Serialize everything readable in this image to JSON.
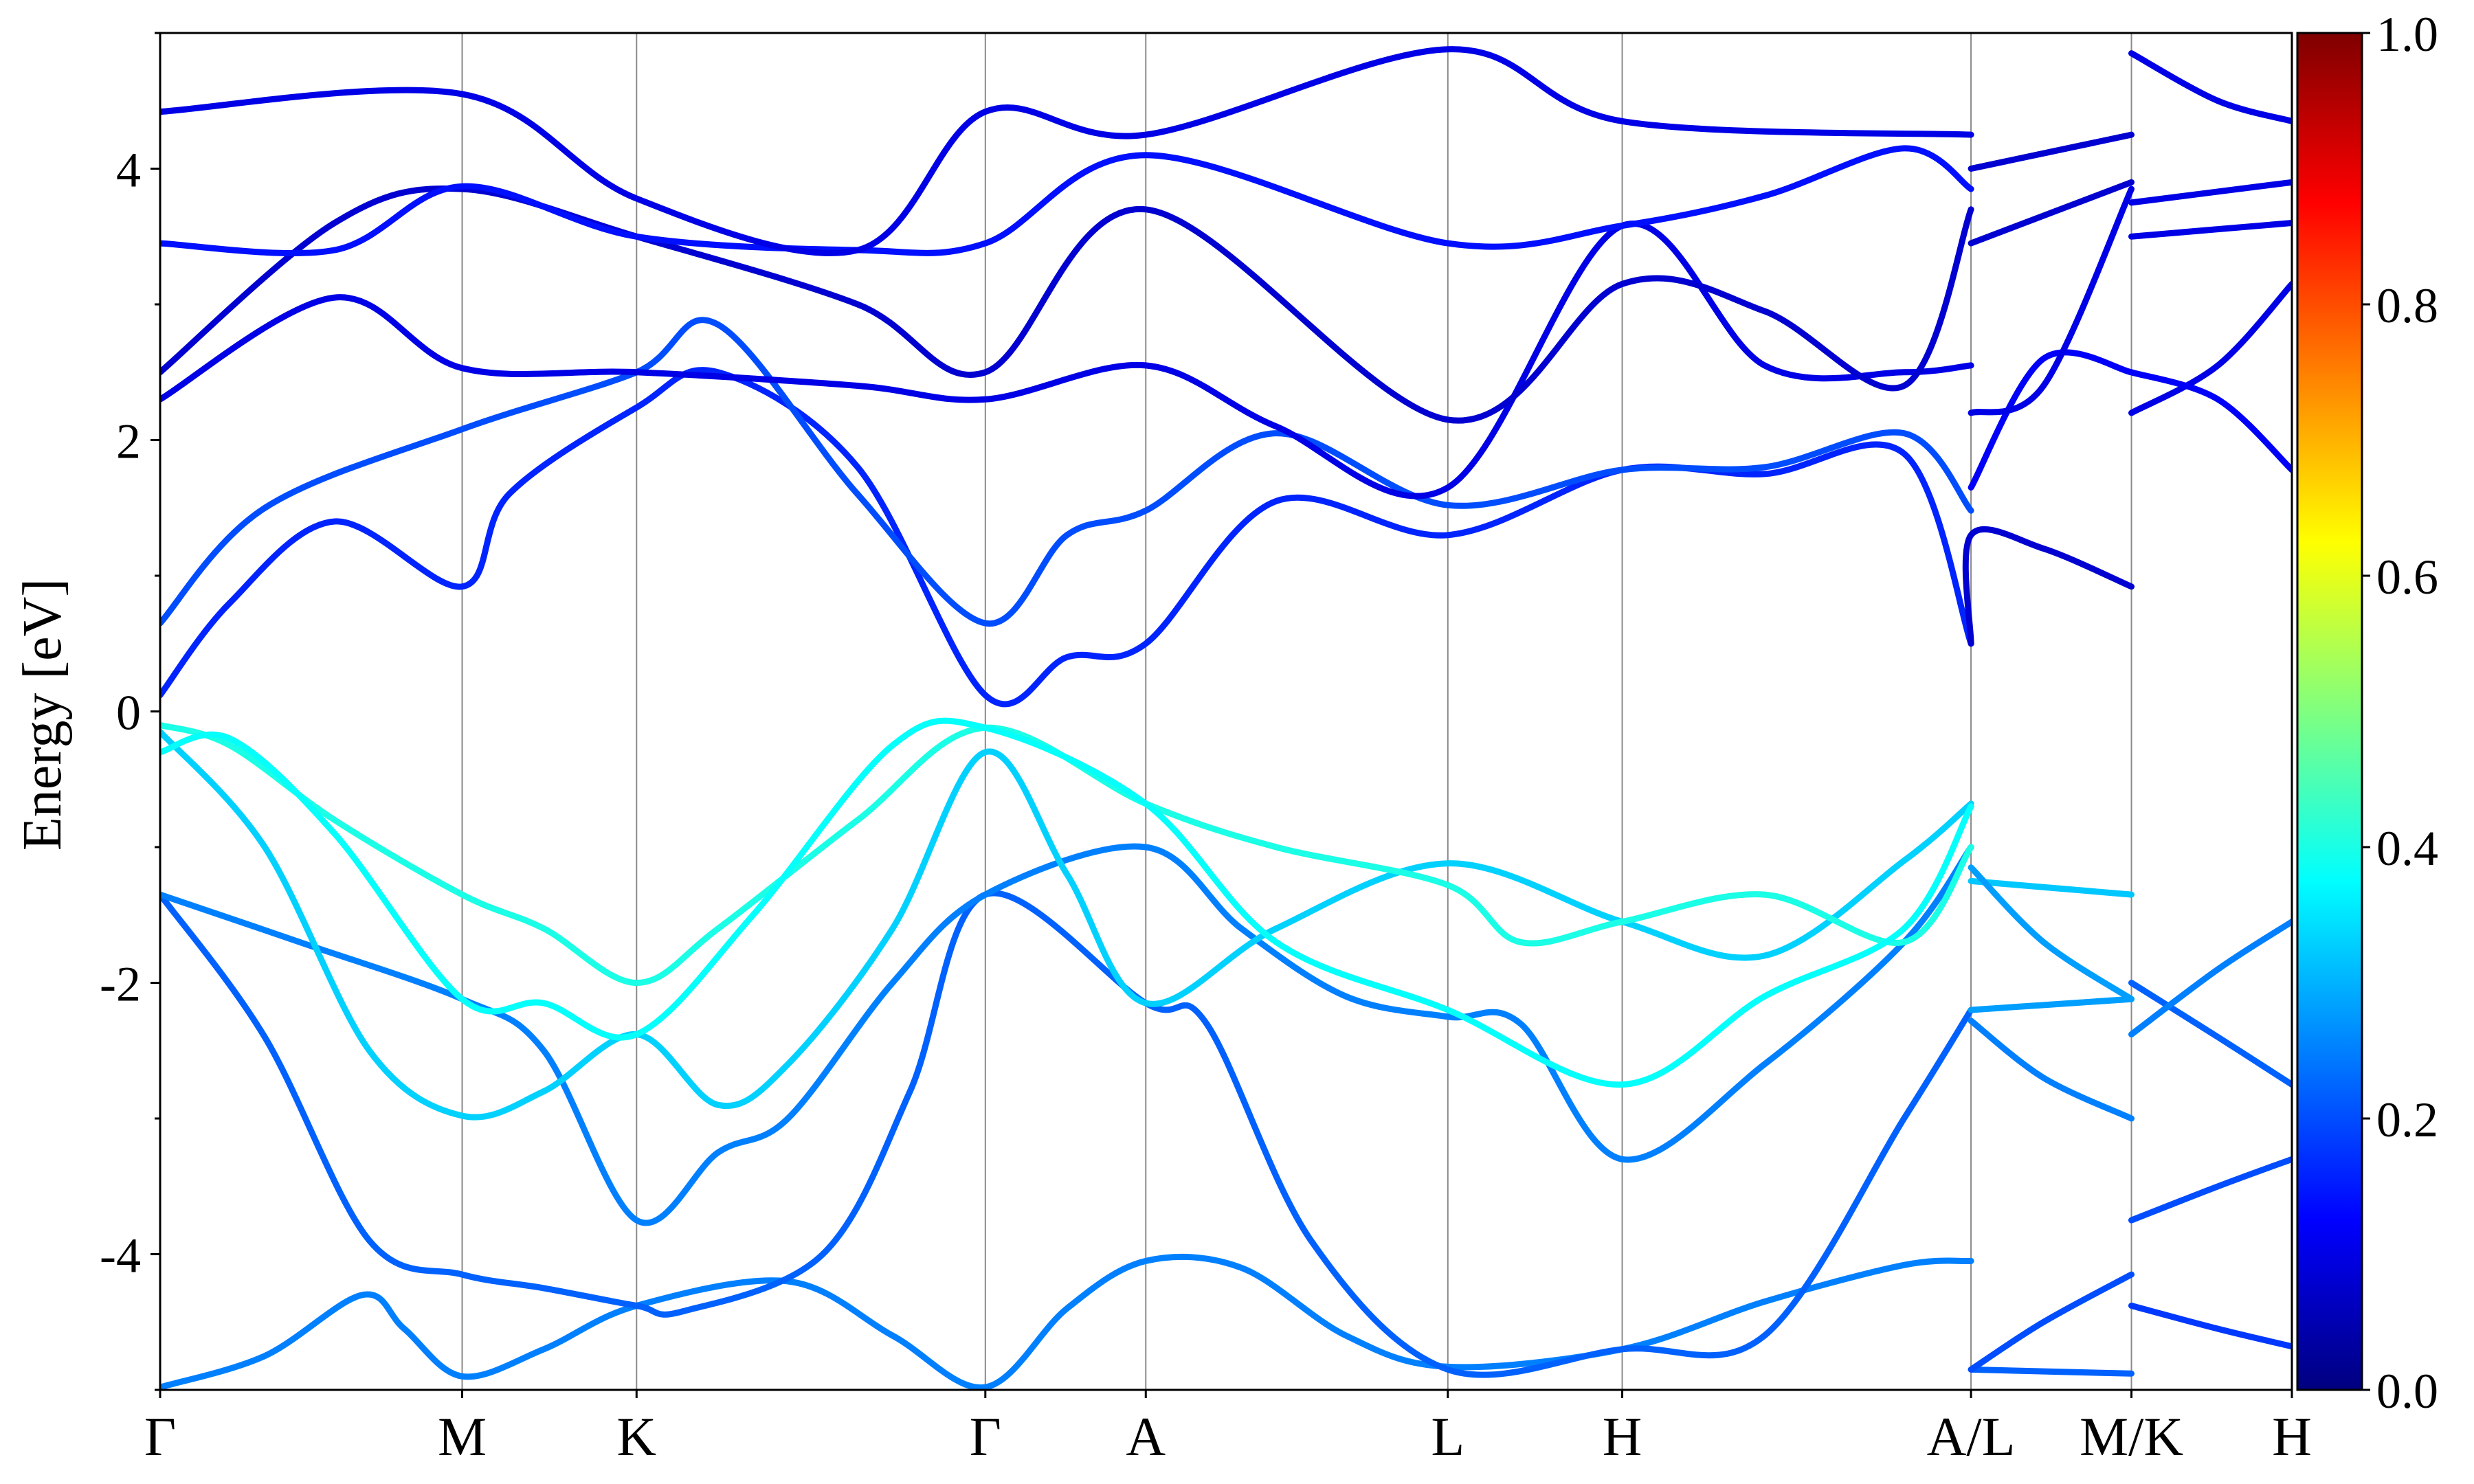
{
  "chart_data": {
    "type": "line",
    "subtype": "electronic band structure",
    "ylabel": "Energy [eV]",
    "ylim": [
      -5,
      5
    ],
    "yticks": [
      -4,
      -2,
      0,
      2,
      4
    ],
    "ytick_labels": [
      "-4",
      "-2",
      "0",
      "2",
      "4"
    ],
    "high_symmetry_points": [
      {
        "label": "Γ",
        "k": 0.0
      },
      {
        "label": "M",
        "k": 0.866
      },
      {
        "label": "K",
        "k": 1.366
      },
      {
        "label": "Γ",
        "k": 2.366
      },
      {
        "label": "A",
        "k": 2.826
      },
      {
        "label": "L",
        "k": 3.692
      },
      {
        "label": "H",
        "k": 4.192
      },
      {
        "label": "A/L",
        "k": 5.192
      },
      {
        "label": "M/K",
        "k": 5.652
      },
      {
        "label": "H",
        "k": 6.112
      }
    ],
    "colorbar": {
      "colormap": "jet",
      "range": [
        0.0,
        1.0
      ],
      "tick_values": [
        0.0,
        0.2,
        0.4,
        0.6,
        0.8,
        1.0
      ],
      "tick_labels": [
        "0.0",
        "0.2",
        "0.4",
        "0.6",
        "0.8",
        "1.0"
      ]
    },
    "bands": [
      {
        "points": [
          [
            0,
            -4.98
          ],
          [
            0.3,
            -4.75
          ],
          [
            0.58,
            -4.3
          ],
          [
            0.7,
            -4.55
          ],
          [
            0.866,
            -4.9
          ],
          [
            1.1,
            -4.7
          ],
          [
            1.366,
            -4.38
          ],
          [
            1.8,
            -4.2
          ],
          [
            2.1,
            -4.6
          ],
          [
            2.366,
            -4.98
          ],
          [
            2.6,
            -4.4
          ],
          [
            2.826,
            -4.05
          ],
          [
            3.1,
            -4.1
          ],
          [
            3.4,
            -4.6
          ],
          [
            3.692,
            -4.83
          ],
          [
            4.192,
            -4.7
          ],
          [
            4.6,
            -4.35
          ],
          [
            5.0,
            -4.08
          ],
          [
            5.192,
            -4.05
          ]
        ],
        "weight": 0.25
      },
      {
        "points": [
          [
            0,
            -1.35
          ],
          [
            0.3,
            -2.4
          ],
          [
            0.6,
            -3.9
          ],
          [
            0.866,
            -4.15
          ],
          [
            1.1,
            -4.25
          ],
          [
            1.366,
            -4.38
          ],
          [
            1.5,
            -4.42
          ],
          [
            1.9,
            -4.0
          ],
          [
            2.15,
            -2.8
          ],
          [
            2.366,
            -1.35
          ],
          [
            2.826,
            -2.15
          ],
          [
            3.0,
            -2.3
          ],
          [
            3.3,
            -3.9
          ],
          [
            3.692,
            -4.85
          ],
          [
            4.192,
            -4.7
          ],
          [
            4.6,
            -4.6
          ],
          [
            5.0,
            -3.0
          ],
          [
            5.192,
            -2.2
          ]
        ],
        "weight": 0.22
      },
      {
        "points": [
          [
            0,
            -1.35
          ],
          [
            0.4,
            -1.7
          ],
          [
            0.866,
            -2.12
          ],
          [
            1.1,
            -2.5
          ],
          [
            1.366,
            -3.75
          ],
          [
            1.6,
            -3.25
          ],
          [
            1.8,
            -3.0
          ],
          [
            2.1,
            -2.0
          ],
          [
            2.366,
            -1.35
          ],
          [
            2.826,
            -1.0
          ],
          [
            3.1,
            -1.6
          ],
          [
            3.4,
            -2.1
          ],
          [
            3.692,
            -2.25
          ],
          [
            3.9,
            -2.3
          ],
          [
            4.192,
            -3.3
          ],
          [
            4.6,
            -2.6
          ],
          [
            5.0,
            -1.7
          ],
          [
            5.192,
            -1.0
          ]
        ],
        "weight": 0.25
      },
      {
        "points": [
          [
            0,
            -0.15
          ],
          [
            0.3,
            -1.0
          ],
          [
            0.6,
            -2.5
          ],
          [
            0.866,
            -2.98
          ],
          [
            1.1,
            -2.8
          ],
          [
            1.366,
            -2.38
          ],
          [
            1.6,
            -2.9
          ],
          [
            1.8,
            -2.6
          ],
          [
            2.1,
            -1.6
          ],
          [
            2.366,
            -0.3
          ],
          [
            2.6,
            -1.2
          ],
          [
            2.826,
            -2.15
          ],
          [
            3.2,
            -1.6
          ],
          [
            3.692,
            -1.12
          ],
          [
            4.192,
            -1.55
          ],
          [
            4.6,
            -1.8
          ],
          [
            5.0,
            -1.1
          ],
          [
            5.192,
            -0.68
          ]
        ],
        "weight": 0.33
      },
      {
        "points": [
          [
            0,
            -0.1
          ],
          [
            0.2,
            -0.25
          ],
          [
            0.5,
            -0.8
          ],
          [
            0.866,
            -1.35
          ],
          [
            1.1,
            -1.6
          ],
          [
            1.366,
            -2.0
          ],
          [
            1.6,
            -1.6
          ],
          [
            2.0,
            -0.8
          ],
          [
            2.366,
            -0.12
          ],
          [
            2.826,
            -0.68
          ],
          [
            3.2,
            -1.0
          ],
          [
            3.692,
            -1.28
          ],
          [
            3.9,
            -1.7
          ],
          [
            4.192,
            -1.55
          ],
          [
            4.6,
            -1.35
          ],
          [
            5.0,
            -1.7
          ],
          [
            5.192,
            -1.0
          ]
        ],
        "weight": 0.4
      },
      {
        "points": [
          [
            0,
            -0.3
          ],
          [
            0.2,
            -0.2
          ],
          [
            0.5,
            -0.9
          ],
          [
            0.866,
            -2.12
          ],
          [
            1.1,
            -2.15
          ],
          [
            1.366,
            -2.38
          ],
          [
            1.7,
            -1.5
          ],
          [
            2.1,
            -0.25
          ],
          [
            2.366,
            -0.12
          ],
          [
            2.826,
            -0.68
          ],
          [
            3.2,
            -1.7
          ],
          [
            3.692,
            -2.2
          ],
          [
            4.192,
            -2.75
          ],
          [
            4.6,
            -2.1
          ],
          [
            5.0,
            -1.6
          ],
          [
            5.192,
            -0.7
          ]
        ],
        "weight": 0.38
      },
      {
        "points": [
          [
            5.192,
            -4.85
          ],
          [
            5.652,
            -4.88
          ]
        ],
        "weight": 0.22
      },
      {
        "points": [
          [
            5.192,
            -4.85
          ],
          [
            5.4,
            -4.5
          ],
          [
            5.652,
            -4.15
          ]
        ],
        "weight": 0.2
      },
      {
        "points": [
          [
            5.192,
            -2.2
          ],
          [
            5.652,
            -2.12
          ]
        ],
        "weight": 0.28
      },
      {
        "points": [
          [
            5.192,
            -2.28
          ],
          [
            5.4,
            -2.7
          ],
          [
            5.652,
            -3.0
          ]
        ],
        "weight": 0.25
      },
      {
        "points": [
          [
            5.192,
            -1.25
          ],
          [
            5.652,
            -1.35
          ]
        ],
        "weight": 0.32
      },
      {
        "points": [
          [
            5.192,
            -1.15
          ],
          [
            5.4,
            -1.7
          ],
          [
            5.652,
            -2.12
          ]
        ],
        "weight": 0.28
      },
      {
        "points": [
          [
            5.652,
            -4.38
          ],
          [
            5.9,
            -4.55
          ],
          [
            6.112,
            -4.68
          ]
        ],
        "weight": 0.18
      },
      {
        "points": [
          [
            5.652,
            -3.75
          ],
          [
            5.9,
            -3.5
          ],
          [
            6.112,
            -3.3
          ]
        ],
        "weight": 0.2
      },
      {
        "points": [
          [
            5.652,
            -2.0
          ],
          [
            5.9,
            -2.4
          ],
          [
            6.112,
            -2.75
          ]
        ],
        "weight": 0.22
      },
      {
        "points": [
          [
            5.652,
            -2.38
          ],
          [
            5.9,
            -1.9
          ],
          [
            6.112,
            -1.55
          ]
        ],
        "weight": 0.25
      },
      {
        "points": [
          [
            0,
            0.12
          ],
          [
            0.2,
            0.8
          ],
          [
            0.5,
            1.4
          ],
          [
            0.866,
            0.92
          ],
          [
            1.0,
            1.6
          ],
          [
            1.366,
            2.24
          ],
          [
            1.6,
            2.5
          ],
          [
            2.0,
            1.8
          ],
          [
            2.366,
            0.12
          ],
          [
            2.6,
            0.4
          ],
          [
            2.826,
            0.5
          ],
          [
            3.2,
            1.55
          ],
          [
            3.692,
            1.3
          ],
          [
            4.192,
            1.78
          ],
          [
            4.6,
            1.75
          ],
          [
            5.0,
            1.9
          ],
          [
            5.192,
            0.5
          ]
        ],
        "weight": 0.16
      },
      {
        "points": [
          [
            0,
            0.65
          ],
          [
            0.3,
            1.5
          ],
          [
            0.866,
            2.08
          ],
          [
            1.366,
            2.5
          ],
          [
            1.6,
            2.85
          ],
          [
            2.0,
            1.6
          ],
          [
            2.366,
            0.65
          ],
          [
            2.6,
            1.3
          ],
          [
            2.826,
            1.48
          ],
          [
            3.2,
            2.05
          ],
          [
            3.692,
            1.52
          ],
          [
            4.192,
            1.78
          ],
          [
            4.6,
            1.8
          ],
          [
            5.0,
            2.05
          ],
          [
            5.192,
            1.48
          ]
        ],
        "weight": 0.2
      },
      {
        "points": [
          [
            0,
            2.3
          ],
          [
            0.5,
            3.05
          ],
          [
            0.866,
            2.53
          ],
          [
            1.366,
            2.5
          ],
          [
            2.0,
            2.4
          ],
          [
            2.366,
            2.3
          ],
          [
            2.826,
            2.55
          ],
          [
            3.2,
            2.1
          ],
          [
            3.692,
            1.65
          ],
          [
            4.192,
            3.58
          ],
          [
            4.6,
            2.55
          ],
          [
            5.0,
            2.5
          ],
          [
            5.192,
            2.55
          ]
        ],
        "weight": 0.1
      },
      {
        "points": [
          [
            0,
            2.5
          ],
          [
            0.5,
            3.6
          ],
          [
            0.866,
            3.85
          ],
          [
            1.366,
            3.5
          ],
          [
            2.0,
            3.0
          ],
          [
            2.366,
            2.5
          ],
          [
            2.826,
            3.7
          ],
          [
            3.692,
            2.15
          ],
          [
            4.192,
            3.15
          ],
          [
            4.6,
            2.95
          ],
          [
            5.0,
            2.4
          ],
          [
            5.192,
            3.7
          ]
        ],
        "weight": 0.08
      },
      {
        "points": [
          [
            0,
            3.45
          ],
          [
            0.5,
            3.4
          ],
          [
            0.866,
            3.87
          ],
          [
            1.366,
            3.5
          ],
          [
            2.0,
            3.4
          ],
          [
            2.366,
            3.45
          ],
          [
            2.826,
            4.1
          ],
          [
            3.692,
            3.45
          ],
          [
            4.192,
            3.58
          ],
          [
            4.6,
            3.8
          ],
          [
            5.0,
            4.15
          ],
          [
            5.192,
            3.85
          ]
        ],
        "weight": 0.14
      },
      {
        "points": [
          [
            0,
            4.42
          ],
          [
            0.866,
            4.55
          ],
          [
            1.366,
            3.78
          ],
          [
            2.0,
            3.4
          ],
          [
            2.366,
            4.42
          ],
          [
            2.826,
            4.25
          ],
          [
            3.692,
            4.88
          ],
          [
            4.192,
            4.35
          ],
          [
            5.192,
            4.25
          ]
        ],
        "weight": 0.1
      },
      {
        "points": [
          [
            5.192,
            0.5
          ],
          [
            5.192,
            1.3
          ],
          [
            5.4,
            1.2
          ],
          [
            5.652,
            0.92
          ]
        ],
        "weight": 0.08
      },
      {
        "points": [
          [
            5.192,
            1.65
          ],
          [
            5.4,
            2.6
          ],
          [
            5.652,
            2.5
          ]
        ],
        "weight": 0.12
      },
      {
        "points": [
          [
            5.192,
            2.2
          ],
          [
            5.4,
            2.4
          ],
          [
            5.652,
            3.85
          ]
        ],
        "weight": 0.1
      },
      {
        "points": [
          [
            5.192,
            3.45
          ],
          [
            5.652,
            3.9
          ]
        ],
        "weight": 0.08
      },
      {
        "points": [
          [
            5.192,
            4.0
          ],
          [
            5.652,
            4.25
          ]
        ],
        "weight": 0.08
      },
      {
        "points": [
          [
            5.652,
            2.2
          ],
          [
            5.9,
            2.55
          ],
          [
            6.112,
            3.15
          ]
        ],
        "weight": 0.1
      },
      {
        "points": [
          [
            5.652,
            2.5
          ],
          [
            5.9,
            2.3
          ],
          [
            6.112,
            1.78
          ]
        ],
        "weight": 0.12
      },
      {
        "points": [
          [
            5.652,
            3.5
          ],
          [
            6.112,
            3.6
          ]
        ],
        "weight": 0.1
      },
      {
        "points": [
          [
            5.652,
            3.75
          ],
          [
            6.112,
            3.9
          ]
        ],
        "weight": 0.1
      },
      {
        "points": [
          [
            5.652,
            4.85
          ],
          [
            5.9,
            4.5
          ],
          [
            6.112,
            4.35
          ]
        ],
        "weight": 0.1
      }
    ]
  }
}
